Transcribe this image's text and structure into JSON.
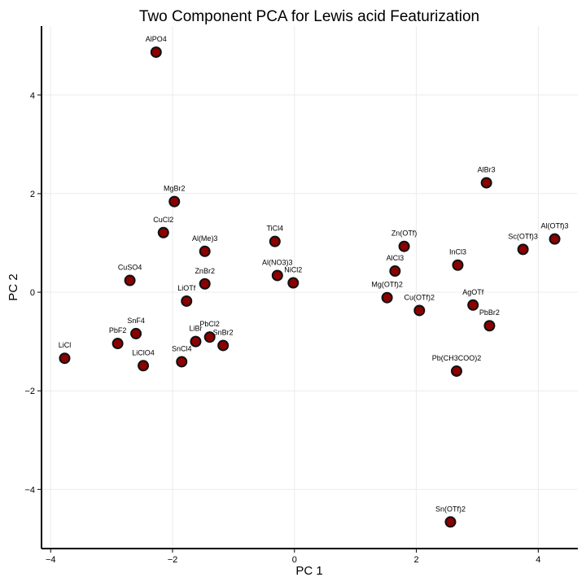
{
  "chart_data": {
    "type": "scatter",
    "title": "Two Component PCA for Lewis acid Featurization",
    "xlabel": "PC 1",
    "ylabel": "PC 2",
    "xlim": [
      -4.15,
      4.65
    ],
    "ylim": [
      -5.2,
      5.4
    ],
    "xticks": [
      -4,
      -2,
      0,
      2,
      4
    ],
    "yticks": [
      -4,
      -2,
      0,
      2,
      4
    ],
    "grid": true,
    "marker_color": "#8b0000",
    "marker_edge": "#111111",
    "points": [
      {
        "label": "AlPO4",
        "x": -2.27,
        "y": 4.87
      },
      {
        "label": "MgBr2",
        "x": -1.97,
        "y": 1.84
      },
      {
        "label": "CuCl2",
        "x": -2.15,
        "y": 1.21
      },
      {
        "label": "Al(Me)3",
        "x": -1.47,
        "y": 0.83
      },
      {
        "label": "CuSO4",
        "x": -2.7,
        "y": 0.24
      },
      {
        "label": "ZnBr2",
        "x": -1.47,
        "y": 0.17
      },
      {
        "label": "LiOTf",
        "x": -1.77,
        "y": -0.18
      },
      {
        "label": "TiCl4",
        "x": -0.32,
        "y": 1.03
      },
      {
        "label": "Al(NO3)3",
        "x": -0.28,
        "y": 0.34
      },
      {
        "label": "NiCl2",
        "x": -0.02,
        "y": 0.19
      },
      {
        "label": "SnF4",
        "x": -2.6,
        "y": -0.84
      },
      {
        "label": "PbF2",
        "x": -2.9,
        "y": -1.04
      },
      {
        "label": "LiCl",
        "x": -3.77,
        "y": -1.34
      },
      {
        "label": "LiClO4",
        "x": -2.48,
        "y": -1.49
      },
      {
        "label": "LiBr",
        "x": -1.62,
        "y": -1.0
      },
      {
        "label": "PbCl2",
        "x": -1.39,
        "y": -0.91
      },
      {
        "label": "SnBr2",
        "x": -1.17,
        "y": -1.08
      },
      {
        "label": "SnCl4",
        "x": -1.85,
        "y": -1.41
      },
      {
        "label": "Zn(OTf)",
        "x": 1.8,
        "y": 0.93
      },
      {
        "label": "AlCl3",
        "x": 1.65,
        "y": 0.43
      },
      {
        "label": "Mg(OTf)2",
        "x": 1.52,
        "y": -0.11
      },
      {
        "label": "Cu(OTf)2",
        "x": 2.05,
        "y": -0.37
      },
      {
        "label": "InCl3",
        "x": 2.68,
        "y": 0.55
      },
      {
        "label": "AlBr3",
        "x": 3.15,
        "y": 2.22
      },
      {
        "label": "Sc(OTf)3",
        "x": 3.75,
        "y": 0.87
      },
      {
        "label": "Al(OTf)3",
        "x": 4.27,
        "y": 1.08
      },
      {
        "label": "AgOTf",
        "x": 2.93,
        "y": -0.26
      },
      {
        "label": "PbBr2",
        "x": 3.2,
        "y": -0.68
      },
      {
        "label": "Pb(CH3COO)2",
        "x": 2.66,
        "y": -1.6
      },
      {
        "label": "Sn(OTf)2",
        "x": 2.56,
        "y": -4.66
      }
    ]
  }
}
